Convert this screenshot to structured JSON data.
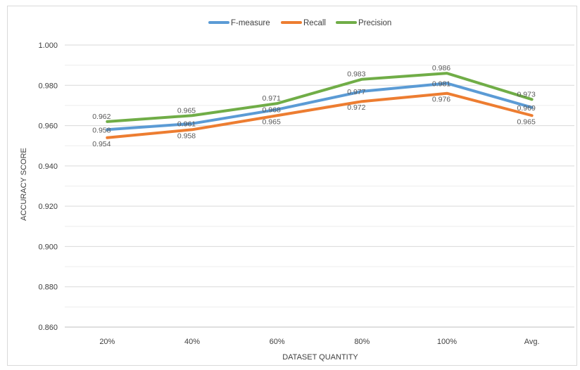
{
  "chart_data": {
    "type": "line",
    "title": "",
    "xlabel": "DATASET QUANTITY",
    "ylabel": "ACCURACY SCORE",
    "categories": [
      "20%",
      "40%",
      "60%",
      "80%",
      "100%",
      "Avg."
    ],
    "ylim": [
      0.86,
      1.0
    ],
    "y_ticks": [
      "0.860",
      "0.880",
      "0.900",
      "0.920",
      "0.940",
      "0.960",
      "0.980",
      "1.000"
    ],
    "grid": true,
    "legend_position": "top",
    "series": [
      {
        "name": "F-measure",
        "color": "#5b9bd5",
        "values": [
          0.958,
          0.961,
          0.968,
          0.977,
          0.981,
          0.969
        ],
        "labels": [
          "0.958",
          "0.961",
          "0.968",
          "0.977",
          "0.981",
          "0.969"
        ]
      },
      {
        "name": "Recall",
        "color": "#ed7d31",
        "values": [
          0.954,
          0.958,
          0.965,
          0.972,
          0.976,
          0.965
        ],
        "labels": [
          "0.954",
          "0.958",
          "0.965",
          "0.972",
          "0.976",
          "0.965"
        ]
      },
      {
        "name": "Precision",
        "color": "#70ad47",
        "values": [
          0.962,
          0.965,
          0.971,
          0.983,
          0.986,
          0.973
        ],
        "labels": [
          "0.962",
          "0.965",
          "0.971",
          "0.983",
          "0.986",
          "0.973"
        ]
      }
    ]
  }
}
